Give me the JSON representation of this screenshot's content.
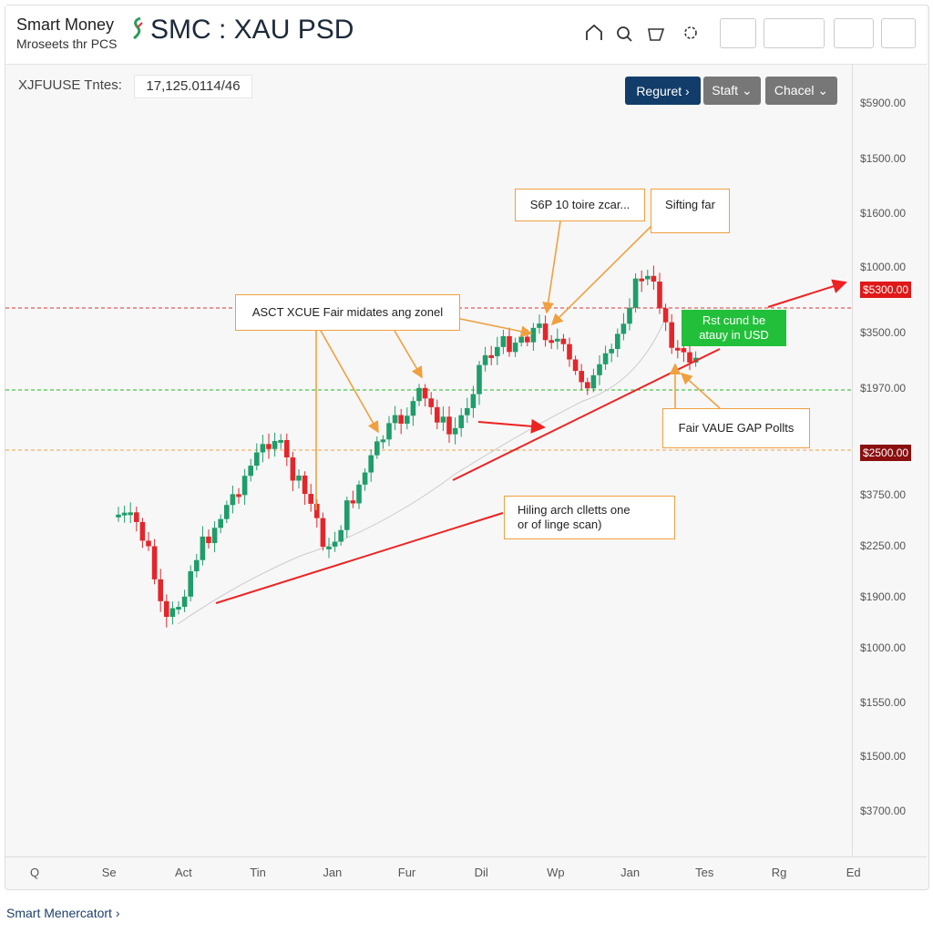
{
  "header": {
    "brand": "Smart Money",
    "brand_sub": "Mroseets thr PCS",
    "title": "SMC : XAU PSD"
  },
  "info": {
    "label": "XJFUUSE Tntes:",
    "value": "17,125.0114/46"
  },
  "buttons": [
    "Reguret ›",
    "Staft ⌄",
    "Chacel ⌄"
  ],
  "y_axis": [
    "$5900.00",
    "$1500.00",
    "$1600.00",
    "$1000.00",
    "$5300.00",
    "$3500.00",
    "$1970.00",
    "$2500.00",
    "$3750.00",
    "$2250.00",
    "$1900.00",
    "$1000.00",
    "$1550.00",
    "$1500.00",
    "$3700.00"
  ],
  "x_axis": [
    "Q",
    "Se",
    "Act",
    "Tin",
    "Jan",
    "Fur",
    "Dil",
    "Wp",
    "Jan",
    "Tes",
    "Rg",
    "Ed"
  ],
  "annotations": {
    "zone": "ASCT XCUE Fair midates ang zonel",
    "s6p": "S6P 10 toire zcar...",
    "sifting": "Sifting far",
    "green_1": "Rst cund be",
    "green_2": "atauy in USD",
    "fvg": "Fair VAUE GAP Pollts",
    "hiling_1": "Hiling arch clletts one",
    "hiling_2": "or of linge scan)"
  },
  "footer": "Smart Menercatort ›"
}
